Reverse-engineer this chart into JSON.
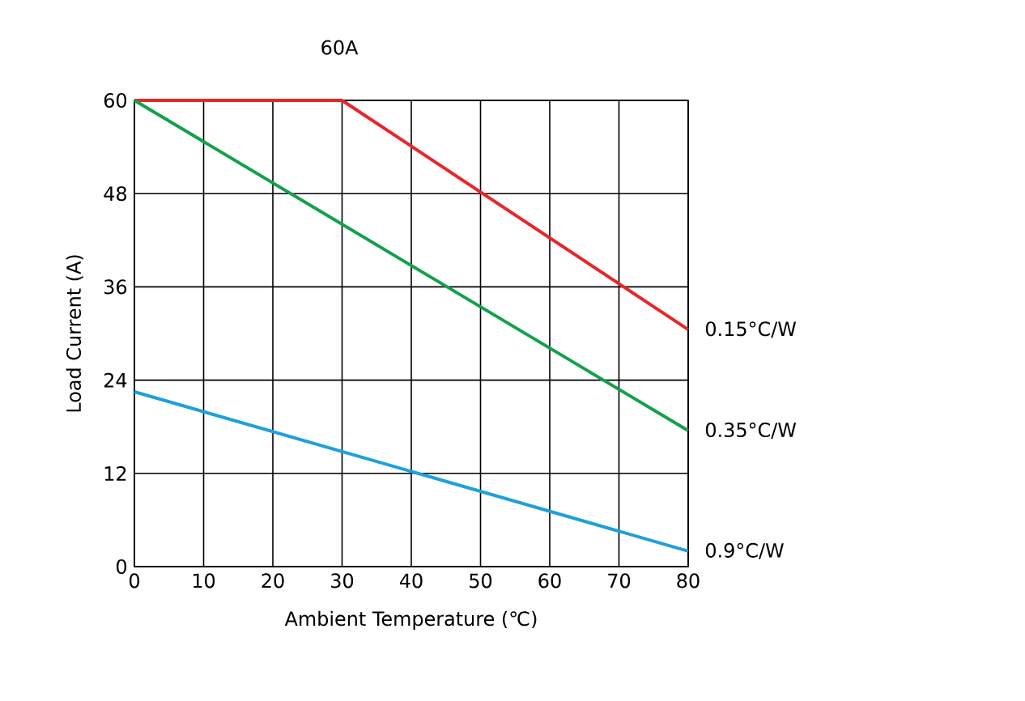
{
  "chart_data": {
    "type": "line",
    "title": "60A",
    "xlabel": "Ambient Temperature (℃)",
    "ylabel": "Load Current (A)",
    "xlim": [
      0,
      80
    ],
    "xticks": [
      0,
      10,
      20,
      30,
      40,
      50,
      60,
      70,
      80
    ],
    "ylim": [
      0,
      60
    ],
    "yticks": [
      0,
      12,
      24,
      36,
      48,
      60
    ],
    "grid": true,
    "marker": "none",
    "line_style": "solid",
    "series": [
      {
        "name": "0.15°C/W",
        "color": "#e8262a",
        "x": [
          0,
          30,
          80
        ],
        "values": [
          60,
          60,
          30.5
        ]
      },
      {
        "name": "0.35°C/W",
        "color": "#13a14b",
        "x": [
          0,
          80
        ],
        "values": [
          60,
          17.5
        ]
      },
      {
        "name": "0.9°C/W",
        "color": "#1ea0dc",
        "x": [
          0,
          80
        ],
        "values": [
          22.5,
          2
        ]
      }
    ]
  }
}
